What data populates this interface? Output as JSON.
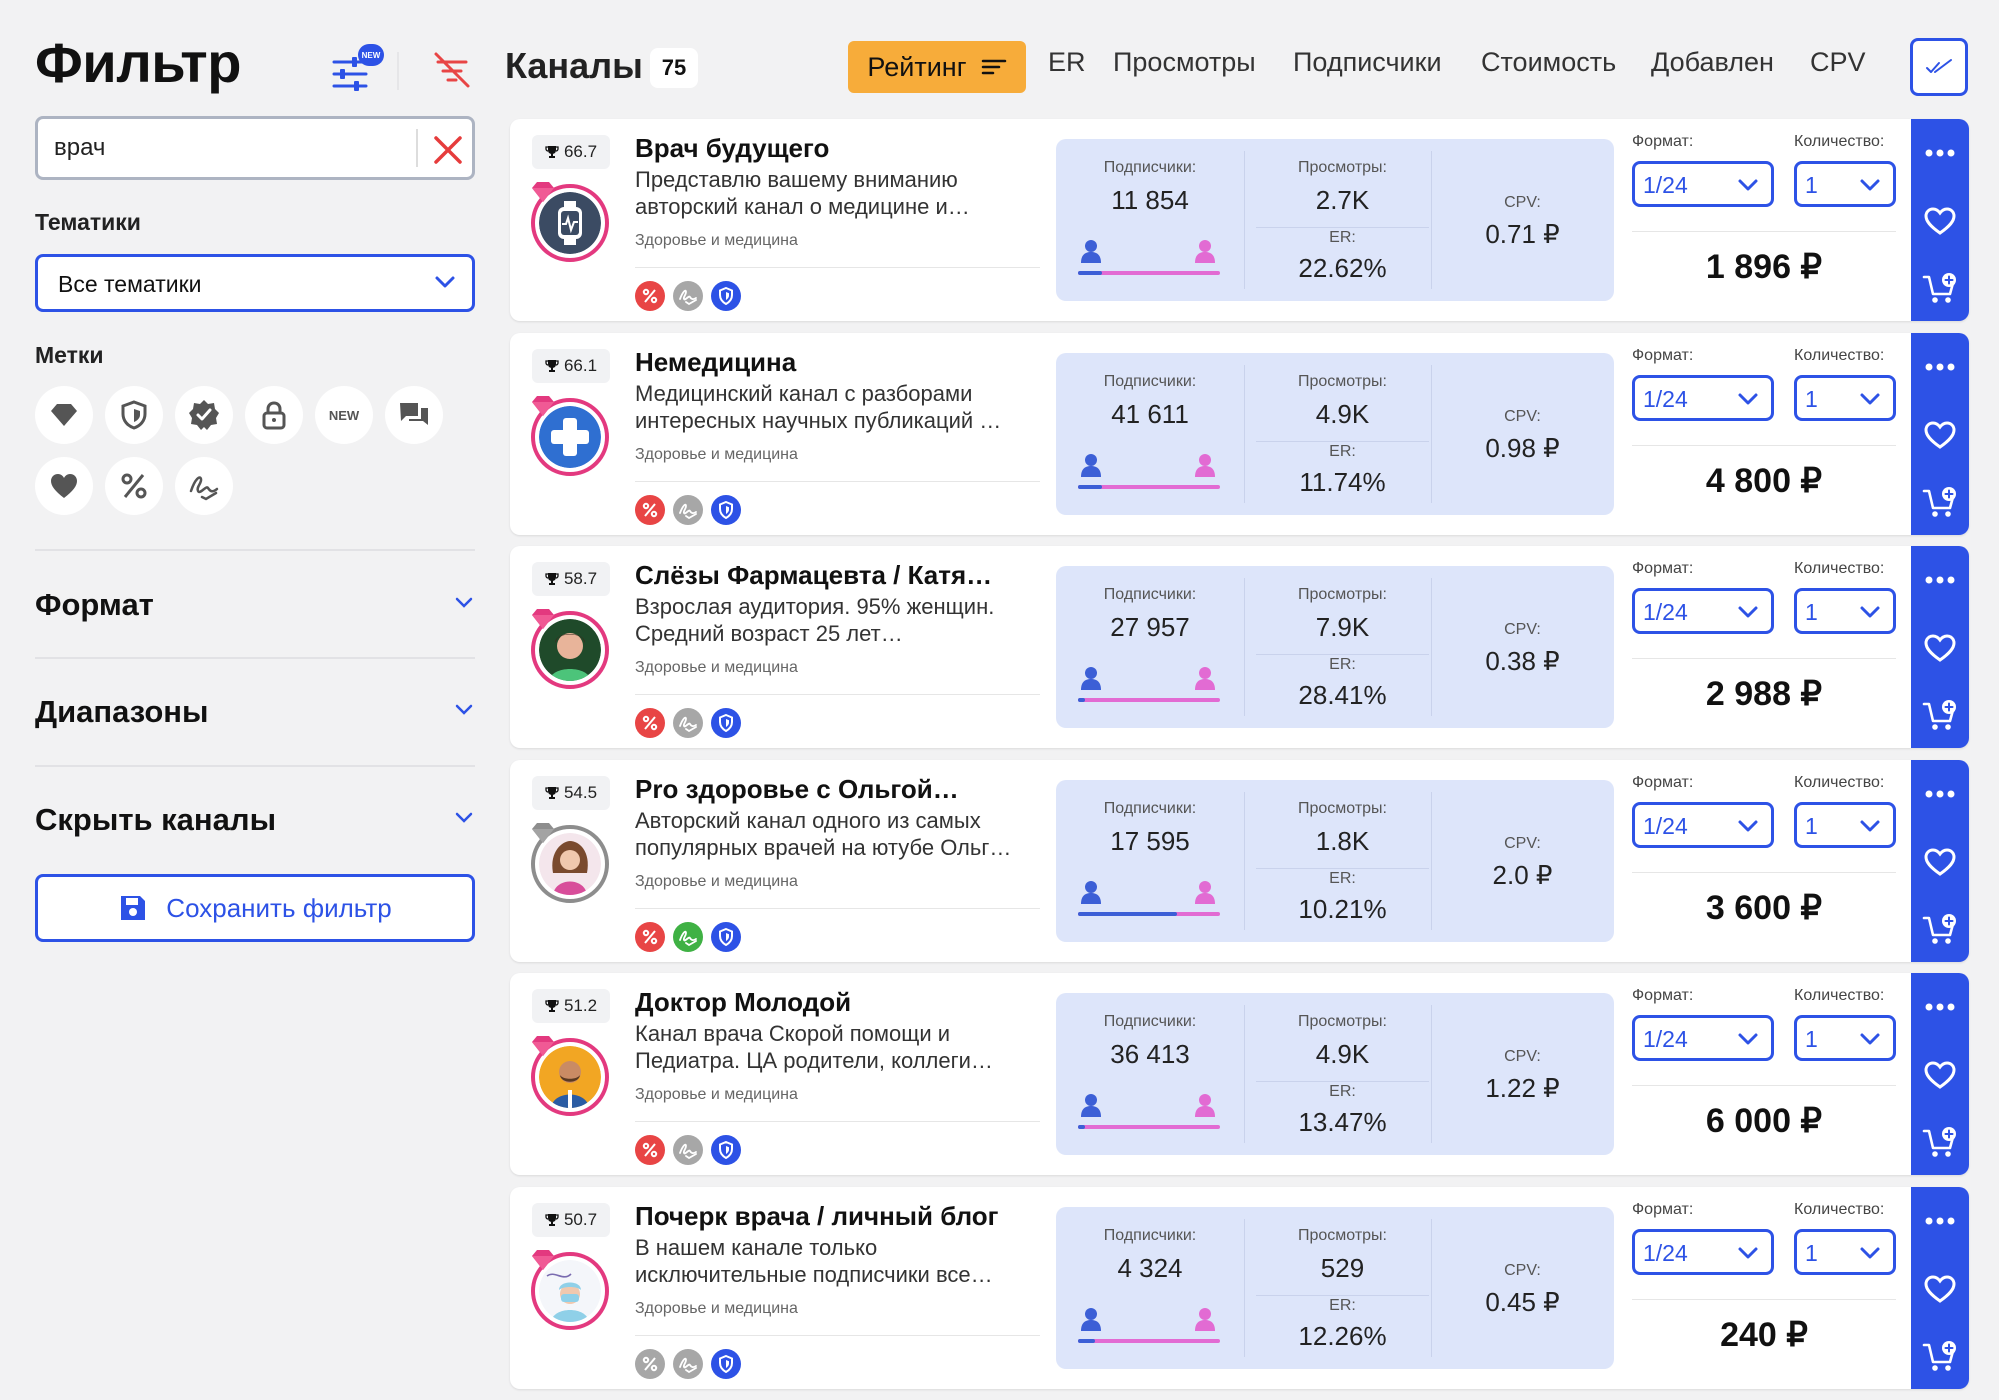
{
  "sidebar": {
    "title": "Фильтр",
    "tune_badge": "NEW",
    "search": {
      "value": "врач",
      "placeholder": ""
    },
    "themes_label": "Тематики",
    "themes_select": "Все тематики",
    "tags_label": "Метки",
    "tags_icons": [
      "diamond-icon",
      "shield-icon",
      "verified-badge-icon",
      "lock-icon",
      "new-icon",
      "chat-icon",
      "heart-icon",
      "percent-icon",
      "signature-icon"
    ],
    "tag_new_text": "NEW",
    "sections": [
      "Формат",
      "Диапазоны",
      "Скрыть каналы"
    ],
    "save_button": "Сохранить фильтр"
  },
  "header": {
    "title": "Каналы",
    "count": "75",
    "sort_active": "Рейтинг",
    "sorts": [
      "ER",
      "Просмотры",
      "Подписчики",
      "Стоимость",
      "Добавлен",
      "CPV"
    ]
  },
  "labels": {
    "subscribers": "Подписчики:",
    "views": "Просмотры:",
    "er": "ER:",
    "cpv": "CPV:",
    "format": "Формат:",
    "quantity": "Количество:"
  },
  "colors": {
    "accent": "#2d52e6",
    "sort_active": "#f7ac3a",
    "stats_bg": "#dde5fa",
    "ring": "#e3397f",
    "male": "#3c5fd6",
    "female": "#e26bd3"
  },
  "channels": [
    {
      "rating": "66.7",
      "title": "Врач будущего",
      "desc1": "Представлю вашему вниманию",
      "desc2": "авторский канал о медицине и…",
      "category": "Здоровье и медицина",
      "subscribers": "11 854",
      "views": "2.7K",
      "er": "22.62%",
      "cpv": "0.71 ₽",
      "format": "1/24",
      "quantity": "1",
      "price": "1 896 ₽",
      "male_share": 0.17,
      "badges": [
        "percent",
        "signature-gray",
        "shield"
      ]
    },
    {
      "rating": "66.1",
      "title": "Немедицина",
      "desc1": "Медицинский канал с разборами",
      "desc2": "интересных научных публикаций …",
      "category": "Здоровье и медицина",
      "subscribers": "41 611",
      "views": "4.9K",
      "er": "11.74%",
      "cpv": "0.98 ₽",
      "format": "1/24",
      "quantity": "1",
      "price": "4 800 ₽",
      "male_share": 0.17,
      "badges": [
        "percent",
        "signature-gray",
        "shield"
      ]
    },
    {
      "rating": "58.7",
      "title": "Слёзы Фармацевта / Катя…",
      "desc1": "Взрослая аудитория. 95% женщин.",
      "desc2": "Средний возраст 25 лет…",
      "category": "Здоровье и медицина",
      "subscribers": "27 957",
      "views": "7.9K",
      "er": "28.41%",
      "cpv": "0.38 ₽",
      "format": "1/24",
      "quantity": "1",
      "price": "2 988 ₽",
      "male_share": 0.05,
      "badges": [
        "percent",
        "signature-gray",
        "shield"
      ]
    },
    {
      "rating": "54.5",
      "title": "Pro здоровье с Ольгой…",
      "desc1": "Авторский канал одного из самых",
      "desc2": "популярных врачей на ютубе Ольг…",
      "category": "Здоровье и медицина",
      "subscribers": "17 595",
      "views": "1.8K",
      "er": "10.21%",
      "cpv": "2.0 ₽",
      "format": "1/24",
      "quantity": "1",
      "price": "3 600 ₽",
      "male_share": 0.7,
      "badges": [
        "percent",
        "signature-green",
        "shield"
      ]
    },
    {
      "rating": "51.2",
      "title": "Доктор Молодой",
      "desc1": "Канал врача Скорой помощи и",
      "desc2": "Педиатра. ЦА родители, коллеги…",
      "category": "Здоровье и медицина",
      "subscribers": "36 413",
      "views": "4.9K",
      "er": "13.47%",
      "cpv": "1.22 ₽",
      "format": "1/24",
      "quantity": "1",
      "price": "6 000 ₽",
      "male_share": 0.05,
      "badges": [
        "percent",
        "signature-gray",
        "shield"
      ]
    },
    {
      "rating": "50.7",
      "title": "Почерк врача / личный блог",
      "desc1": "В нашем канале только",
      "desc2": "исключительные подписчики все…",
      "category": "Здоровье и медицина",
      "subscribers": "4 324",
      "views": "529",
      "er": "12.26%",
      "cpv": "0.45 ₽",
      "format": "1/24",
      "quantity": "1",
      "price": "240 ₽",
      "male_share": 0.12,
      "badges": [
        "percent-gray",
        "signature-gray",
        "shield"
      ]
    }
  ]
}
